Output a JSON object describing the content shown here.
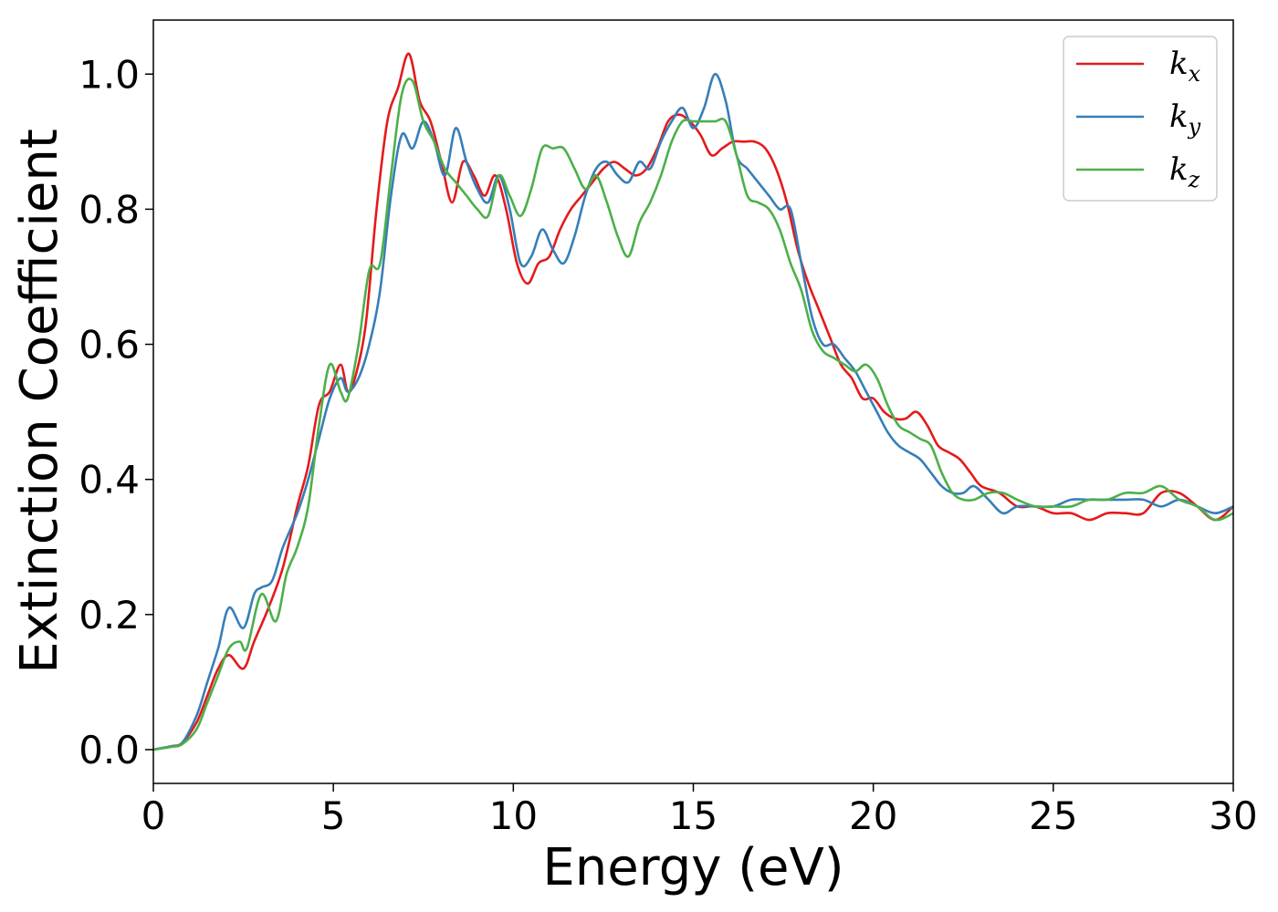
{
  "chart_data": {
    "type": "line",
    "title": "",
    "xlabel": "Energy (eV)",
    "ylabel": "Extinction Coefficient",
    "xlim": [
      0,
      30
    ],
    "ylim": [
      -0.05,
      1.08
    ],
    "xticks": [
      0,
      5,
      10,
      15,
      20,
      25,
      30
    ],
    "xtick_labels": [
      "0",
      "5",
      "10",
      "15",
      "20",
      "25",
      "30"
    ],
    "yticks": [
      0.0,
      0.2,
      0.4,
      0.6,
      0.8,
      1.0
    ],
    "ytick_labels": [
      "0.0",
      "0.2",
      "0.4",
      "0.6",
      "0.8",
      "1.0"
    ],
    "grid": false,
    "legend_position": "top-right",
    "series": [
      {
        "name": "k_x",
        "label_base": "k",
        "label_sub": "x",
        "color": "#e41a1c",
        "x": [
          0,
          0.5,
          0.8,
          1.2,
          1.5,
          1.8,
          2.1,
          2.5,
          2.8,
          3.2,
          3.6,
          4.0,
          4.3,
          4.6,
          4.9,
          5.2,
          5.4,
          5.6,
          5.9,
          6.2,
          6.5,
          6.8,
          7.1,
          7.4,
          7.7,
          8.0,
          8.3,
          8.6,
          8.9,
          9.2,
          9.5,
          9.8,
          10.1,
          10.4,
          10.7,
          11.0,
          11.3,
          11.6,
          11.9,
          12.2,
          12.5,
          12.8,
          13.1,
          13.4,
          13.7,
          14.0,
          14.3,
          14.6,
          14.9,
          15.2,
          15.5,
          15.8,
          16.1,
          16.4,
          16.7,
          17.0,
          17.3,
          17.6,
          17.9,
          18.2,
          18.5,
          18.8,
          19.1,
          19.4,
          19.7,
          20.0,
          20.3,
          20.6,
          20.9,
          21.2,
          21.5,
          21.8,
          22.1,
          22.4,
          22.7,
          23.0,
          23.5,
          24.0,
          24.5,
          25.0,
          25.5,
          26.0,
          26.5,
          27.0,
          27.5,
          28.0,
          28.5,
          29.0,
          29.5,
          30.0
        ],
        "values": [
          0.0,
          0.005,
          0.01,
          0.04,
          0.08,
          0.12,
          0.14,
          0.12,
          0.16,
          0.21,
          0.27,
          0.36,
          0.42,
          0.51,
          0.53,
          0.57,
          0.53,
          0.55,
          0.63,
          0.8,
          0.93,
          0.98,
          1.03,
          0.96,
          0.93,
          0.87,
          0.81,
          0.87,
          0.85,
          0.82,
          0.85,
          0.8,
          0.72,
          0.69,
          0.72,
          0.73,
          0.77,
          0.8,
          0.82,
          0.84,
          0.86,
          0.87,
          0.86,
          0.85,
          0.86,
          0.89,
          0.93,
          0.94,
          0.93,
          0.91,
          0.88,
          0.89,
          0.9,
          0.9,
          0.9,
          0.89,
          0.86,
          0.81,
          0.74,
          0.69,
          0.65,
          0.61,
          0.57,
          0.55,
          0.52,
          0.52,
          0.5,
          0.49,
          0.49,
          0.5,
          0.48,
          0.45,
          0.44,
          0.43,
          0.41,
          0.39,
          0.38,
          0.36,
          0.36,
          0.35,
          0.35,
          0.34,
          0.35,
          0.35,
          0.35,
          0.38,
          0.38,
          0.36,
          0.34,
          0.36
        ]
      },
      {
        "name": "k_y",
        "label_base": "k",
        "label_sub": "y",
        "color": "#377eb8",
        "x": [
          0,
          0.5,
          0.8,
          1.2,
          1.5,
          1.8,
          2.1,
          2.5,
          2.8,
          3.0,
          3.3,
          3.6,
          4.0,
          4.3,
          4.6,
          4.9,
          5.2,
          5.4,
          5.7,
          6.0,
          6.3,
          6.6,
          6.9,
          7.2,
          7.5,
          7.8,
          8.1,
          8.4,
          8.7,
          9.0,
          9.3,
          9.6,
          9.9,
          10.2,
          10.5,
          10.8,
          11.1,
          11.4,
          11.7,
          12.0,
          12.3,
          12.6,
          12.9,
          13.2,
          13.5,
          13.8,
          14.1,
          14.4,
          14.7,
          15.0,
          15.3,
          15.6,
          15.9,
          16.2,
          16.5,
          16.8,
          17.1,
          17.4,
          17.7,
          18.0,
          18.3,
          18.6,
          18.9,
          19.2,
          19.5,
          19.8,
          20.1,
          20.4,
          20.7,
          21.0,
          21.3,
          21.6,
          21.9,
          22.2,
          22.5,
          22.8,
          23.2,
          23.6,
          24.0,
          24.5,
          25.0,
          25.5,
          26.0,
          26.5,
          27.0,
          27.5,
          28.0,
          28.5,
          29.0,
          29.5,
          30.0
        ],
        "values": [
          0.0,
          0.005,
          0.01,
          0.05,
          0.1,
          0.15,
          0.21,
          0.18,
          0.23,
          0.24,
          0.25,
          0.3,
          0.35,
          0.4,
          0.46,
          0.52,
          0.55,
          0.53,
          0.55,
          0.6,
          0.68,
          0.82,
          0.91,
          0.89,
          0.93,
          0.9,
          0.85,
          0.92,
          0.87,
          0.83,
          0.81,
          0.85,
          0.8,
          0.72,
          0.73,
          0.77,
          0.74,
          0.72,
          0.76,
          0.82,
          0.86,
          0.87,
          0.85,
          0.84,
          0.87,
          0.86,
          0.9,
          0.93,
          0.95,
          0.92,
          0.95,
          1.0,
          0.96,
          0.88,
          0.86,
          0.84,
          0.82,
          0.8,
          0.8,
          0.72,
          0.64,
          0.6,
          0.6,
          0.58,
          0.56,
          0.53,
          0.5,
          0.47,
          0.45,
          0.44,
          0.43,
          0.41,
          0.39,
          0.38,
          0.38,
          0.39,
          0.37,
          0.35,
          0.36,
          0.36,
          0.36,
          0.37,
          0.37,
          0.37,
          0.37,
          0.37,
          0.36,
          0.37,
          0.36,
          0.35,
          0.36
        ]
      },
      {
        "name": "k_z",
        "label_base": "k",
        "label_sub": "z",
        "color": "#4daf4a",
        "x": [
          0,
          0.5,
          0.8,
          1.2,
          1.5,
          1.8,
          2.1,
          2.4,
          2.6,
          3.0,
          3.4,
          3.7,
          4.0,
          4.3,
          4.6,
          4.9,
          5.2,
          5.4,
          5.7,
          6.0,
          6.3,
          6.6,
          6.9,
          7.2,
          7.5,
          7.8,
          8.1,
          8.4,
          8.7,
          9.0,
          9.3,
          9.6,
          9.9,
          10.2,
          10.5,
          10.8,
          11.1,
          11.4,
          11.7,
          12.0,
          12.3,
          12.6,
          12.9,
          13.2,
          13.5,
          13.8,
          14.1,
          14.4,
          14.7,
          15.0,
          15.3,
          15.6,
          15.9,
          16.2,
          16.5,
          16.8,
          17.1,
          17.4,
          17.7,
          18.0,
          18.3,
          18.6,
          18.9,
          19.2,
          19.5,
          19.8,
          20.1,
          20.4,
          20.7,
          21.0,
          21.3,
          21.6,
          21.9,
          22.2,
          22.5,
          22.8,
          23.2,
          23.6,
          24.0,
          24.5,
          25.0,
          25.5,
          26.0,
          26.5,
          27.0,
          27.5,
          28.0,
          28.5,
          29.0,
          29.5,
          30.0
        ],
        "values": [
          0.0,
          0.004,
          0.008,
          0.03,
          0.07,
          0.11,
          0.15,
          0.16,
          0.15,
          0.23,
          0.19,
          0.26,
          0.3,
          0.36,
          0.48,
          0.57,
          0.53,
          0.52,
          0.6,
          0.71,
          0.72,
          0.85,
          0.97,
          0.99,
          0.93,
          0.9,
          0.86,
          0.84,
          0.82,
          0.8,
          0.79,
          0.85,
          0.82,
          0.79,
          0.83,
          0.89,
          0.89,
          0.89,
          0.86,
          0.83,
          0.85,
          0.81,
          0.76,
          0.73,
          0.78,
          0.81,
          0.85,
          0.9,
          0.93,
          0.93,
          0.93,
          0.93,
          0.93,
          0.88,
          0.82,
          0.81,
          0.8,
          0.77,
          0.72,
          0.68,
          0.62,
          0.59,
          0.58,
          0.57,
          0.56,
          0.57,
          0.55,
          0.51,
          0.48,
          0.47,
          0.46,
          0.45,
          0.41,
          0.38,
          0.37,
          0.37,
          0.38,
          0.38,
          0.37,
          0.36,
          0.36,
          0.36,
          0.37,
          0.37,
          0.38,
          0.38,
          0.39,
          0.37,
          0.36,
          0.34,
          0.35
        ]
      }
    ]
  }
}
